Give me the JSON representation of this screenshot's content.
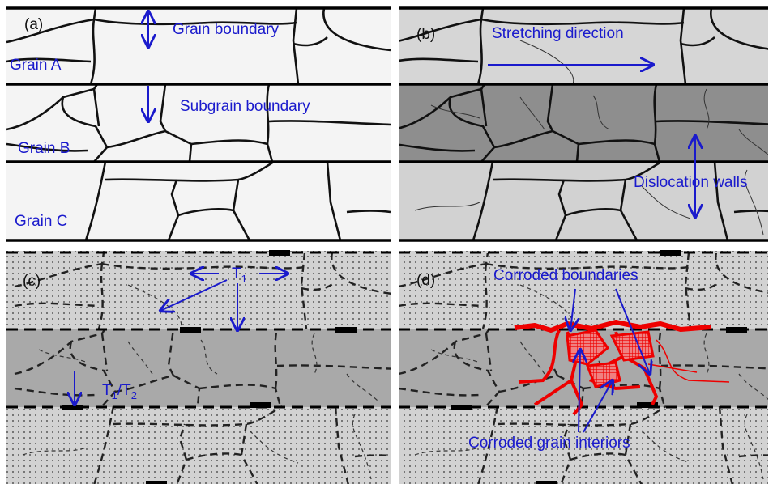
{
  "panels": [
    {
      "label": "(a)",
      "grain_boundary": "Grain boundary",
      "subgrain_boundary": "Subgrain boundary",
      "grains": [
        "Grain A",
        "Grain B",
        "Grain C"
      ]
    },
    {
      "label": "(b)",
      "stretching": "Stretching direction",
      "dislocation": "Dislocation walls"
    },
    {
      "label": "(c)",
      "t1": {
        "base": "T",
        "sub": "1"
      },
      "t1_t2": [
        {
          "base": "T",
          "sub": "1"
        },
        {
          "base": "/T",
          "sub": "2"
        }
      ]
    },
    {
      "label": "(d)",
      "corroded_boundaries": "Corroded boundaries",
      "corroded_interiors": "Corroded grain interiors"
    }
  ]
}
